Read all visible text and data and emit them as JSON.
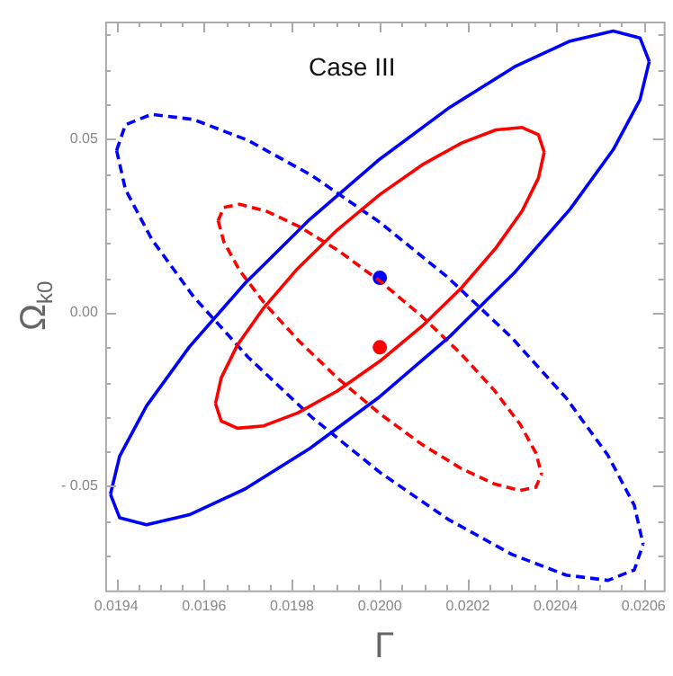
{
  "chart_data": {
    "type": "line",
    "title": "Case III",
    "xlabel": "Γ",
    "ylabel": "Ω$_{k0}$",
    "xlim": [
      0.019375,
      0.020646
    ],
    "ylim": [
      -0.08,
      0.0838
    ],
    "xticks": [
      0.0194,
      {
        "value": 0.01945,
        "label": null
      },
      {
        "value": 0.0195,
        "label": null
      },
      {
        "value": 0.01955,
        "label": null
      },
      0.0196,
      {
        "value": 0.01965,
        "label": null
      },
      {
        "value": 0.0197,
        "label": null
      },
      {
        "value": 0.01975,
        "label": null
      },
      0.0198,
      {
        "value": 0.01985,
        "label": null
      },
      {
        "value": 0.0199,
        "label": null
      },
      {
        "value": 0.01995,
        "label": null
      },
      {
        "value": 0.02,
        "label": "0.0200"
      },
      {
        "value": 0.02005,
        "label": null
      },
      {
        "value": 0.0201,
        "label": null
      },
      {
        "value": 0.02015,
        "label": null
      },
      0.0202,
      {
        "value": 0.02025,
        "label": null
      },
      {
        "value": 0.0203,
        "label": null
      },
      {
        "value": 0.02035,
        "label": null
      },
      0.0204,
      {
        "value": 0.02045,
        "label": null
      },
      {
        "value": 0.0205,
        "label": null
      },
      {
        "value": 0.02055,
        "label": null
      },
      0.0206
    ],
    "yticks": [
      {
        "value": -0.07,
        "label": null
      },
      {
        "value": -0.06,
        "label": null
      },
      {
        "value": -0.05,
        "label": "- 0.05"
      },
      {
        "value": -0.04,
        "label": null
      },
      {
        "value": -0.03,
        "label": null
      },
      {
        "value": -0.02,
        "label": null
      },
      {
        "value": -0.01,
        "label": null
      },
      {
        "value": 0,
        "label": "0.00"
      },
      {
        "value": 0.01,
        "label": null
      },
      {
        "value": 0.02,
        "label": null
      },
      {
        "value": 0.03,
        "label": null
      },
      {
        "value": 0.04,
        "label": null
      },
      {
        "value": 0.05,
        "label": "0.05"
      },
      {
        "value": 0.06,
        "label": null
      },
      {
        "value": 0.07,
        "label": null
      },
      {
        "value": 0.08,
        "label": null
      }
    ],
    "grid": false,
    "legend": false,
    "series": [
      {
        "color": "#0000ff",
        "line_style": "solid",
        "marker": "none",
        "x": [
          0.019387,
          0.019408,
          0.019469,
          0.019567,
          0.019693,
          0.019841,
          0.02,
          0.020159,
          0.020307,
          0.020433,
          0.020531,
          0.020592,
          0.020613
        ],
        "values": [
          -0.0523,
          -0.0413,
          -0.0269,
          -0.0098,
          0.0084,
          0.0269,
          0.0442,
          0.0591,
          0.0708,
          0.0782,
          0.0811,
          0.0791,
          0.0723
        ]
      },
      {
        "color": "#0000ff",
        "line_style": "solid",
        "marker": "none",
        "x": [
          0.019387,
          0.019408,
          0.019469,
          0.019567,
          0.019693,
          0.019841,
          0.02,
          0.020159,
          0.020307,
          0.020433,
          0.020531,
          0.020592,
          0.020613
        ],
        "values": [
          -0.0523,
          -0.0591,
          -0.0611,
          -0.0582,
          -0.0508,
          -0.0391,
          -0.0242,
          -0.0069,
          0.0116,
          0.0298,
          0.0469,
          0.0613,
          0.0723
        ]
      },
      {
        "color": "#ff0000",
        "line_style": "solid",
        "marker": "none",
        "x": [
          0.019626,
          0.019639,
          0.019676,
          0.019736,
          0.019813,
          0.019903,
          0.02,
          0.020097,
          0.020187,
          0.020264,
          0.020324,
          0.020361,
          0.020374
        ],
        "values": [
          -0.0262,
          -0.0188,
          -0.0093,
          0.0014,
          0.0127,
          0.0238,
          0.034,
          0.0426,
          0.0489,
          0.0526,
          0.0533,
          0.0512,
          0.0462
        ]
      },
      {
        "color": "#ff0000",
        "line_style": "solid",
        "marker": "none",
        "x": [
          0.019626,
          0.019639,
          0.019676,
          0.019736,
          0.019813,
          0.019903,
          0.02,
          0.020097,
          0.020187,
          0.020264,
          0.020324,
          0.020361,
          0.020374
        ],
        "values": [
          -0.0262,
          -0.0312,
          -0.0333,
          -0.0326,
          -0.0289,
          -0.0226,
          -0.014,
          -0.0038,
          0.0073,
          0.0186,
          0.0293,
          0.0388,
          0.0462
        ]
      },
      {
        "color": "#0000ff",
        "line_style": "dashed",
        "marker": "none",
        "x": [
          0.019401,
          0.019421,
          0.019481,
          0.019576,
          0.0197,
          0.019845,
          0.02,
          0.020155,
          0.0203,
          0.020424,
          0.020519,
          0.020579,
          0.020599
        ],
        "values": [
          0.0467,
          0.0541,
          0.0571,
          0.0556,
          0.0496,
          0.0395,
          0.026,
          0.0101,
          -0.0072,
          -0.0246,
          -0.0411,
          -0.0555,
          -0.0667
        ]
      },
      {
        "color": "#0000ff",
        "line_style": "dashed",
        "marker": "none",
        "x": [
          0.019401,
          0.019421,
          0.019481,
          0.019576,
          0.0197,
          0.019845,
          0.02,
          0.020155,
          0.0203,
          0.020424,
          0.020519,
          0.020579,
          0.020599
        ],
        "values": [
          0.0467,
          0.0355,
          0.0211,
          0.0046,
          -0.0128,
          -0.0301,
          -0.046,
          -0.0595,
          -0.0696,
          -0.0756,
          -0.0771,
          -0.0741,
          -0.0667
        ]
      },
      {
        "color": "#ff0000",
        "line_style": "dashed",
        "marker": "none",
        "x": [
          0.019632,
          0.019645,
          0.019681,
          0.01974,
          0.019816,
          0.019905,
          0.02,
          0.020095,
          0.020184,
          0.02026,
          0.020319,
          0.020355,
          0.020368
        ],
        "values": [
          0.0265,
          0.0303,
          0.0312,
          0.0293,
          0.0248,
          0.0179,
          0.0091,
          -0.001,
          -0.0118,
          -0.0223,
          -0.0321,
          -0.0404,
          -0.0465
        ]
      },
      {
        "color": "#ff0000",
        "line_style": "dashed",
        "marker": "none",
        "x": [
          0.019632,
          0.019645,
          0.019681,
          0.01974,
          0.019816,
          0.019905,
          0.02,
          0.020095,
          0.020184,
          0.02026,
          0.020319,
          0.020355,
          0.020368
        ],
        "values": [
          0.0265,
          0.0204,
          0.0121,
          0.0023,
          -0.0082,
          -0.019,
          -0.0291,
          -0.0379,
          -0.0448,
          -0.0493,
          -0.0512,
          -0.0503,
          -0.0465
        ]
      },
      {
        "type": "scatter",
        "color": "#0000ff",
        "marker": "circle",
        "x": [
          0.02
        ],
        "values": [
          0.01
        ]
      },
      {
        "type": "scatter",
        "color": "#ff0000",
        "marker": "circle",
        "x": [
          0.02
        ],
        "values": [
          -0.01
        ]
      }
    ]
  }
}
